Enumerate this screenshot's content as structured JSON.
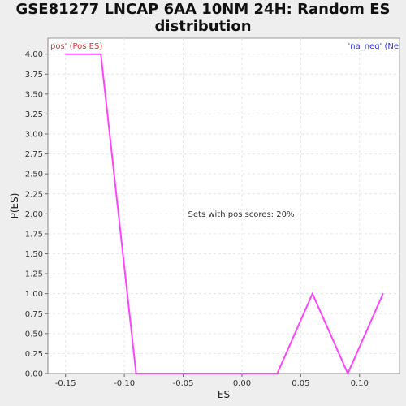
{
  "chart_data": {
    "type": "line",
    "title_line1": "GSE81277 LNCAP 6AA 10NM 24H: Random ES",
    "title_line2": "distribution",
    "xlabel": "ES",
    "ylabel": "P(ES)",
    "xlim": [
      -0.165,
      0.134
    ],
    "ylim": [
      0,
      4.2
    ],
    "x_ticks": [
      "-0.15",
      "-0.10",
      "-0.05",
      "0.00",
      "0.05",
      "0.10"
    ],
    "x_tick_values": [
      -0.15,
      -0.1,
      -0.05,
      0.0,
      0.05,
      0.1
    ],
    "y_ticks": [
      "0.00",
      "0.25",
      "0.50",
      "0.75",
      "1.00",
      "1.25",
      "1.50",
      "1.75",
      "2.00",
      "2.25",
      "2.50",
      "2.75",
      "3.00",
      "3.25",
      "3.50",
      "3.75",
      "4.00"
    ],
    "y_tick_values": [
      0,
      0.25,
      0.5,
      0.75,
      1.0,
      1.25,
      1.5,
      1.75,
      2.0,
      2.25,
      2.5,
      2.75,
      3.0,
      3.25,
      3.5,
      3.75,
      4.0
    ],
    "grid": true,
    "series": [
      {
        "color": "#ff44ff",
        "x": [
          -0.15,
          -0.12,
          -0.09,
          0.03,
          0.06,
          0.09,
          0.12
        ],
        "y": [
          4.0,
          4.0,
          0.0,
          0.0,
          1.0,
          0.0,
          1.0
        ]
      }
    ],
    "annotations": {
      "pos_label": "pos' (Pos ES)",
      "pos_color": "#dd3333",
      "neg_label": "'na_neg' (Ne",
      "neg_color": "#3333cc",
      "center_text": "Sets with pos scores: 20%"
    }
  }
}
